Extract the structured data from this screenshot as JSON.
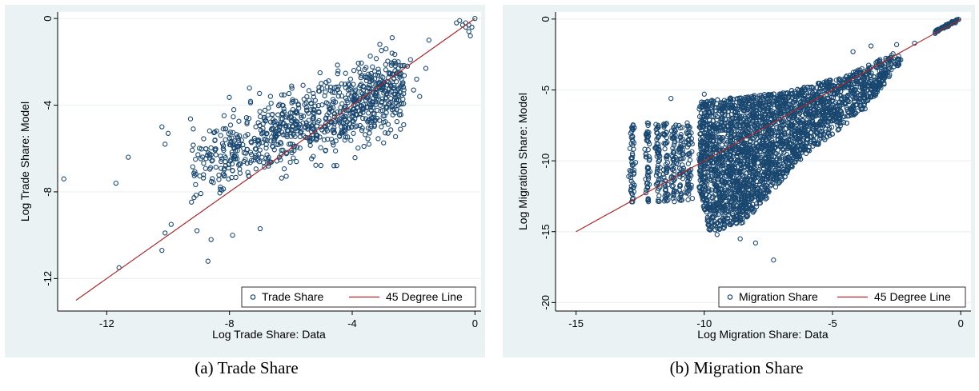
{
  "chart_data": [
    {
      "type": "scatter",
      "xlabel": "Log Trade Share: Data",
      "ylabel": "Log Trade Share: Model",
      "xlim": [
        -13.6,
        0.2
      ],
      "ylim": [
        -13.5,
        0.3
      ],
      "xticks": [
        "-12",
        "-8",
        "-4",
        "0"
      ],
      "xtick_values": [
        -12,
        -8,
        -4,
        0
      ],
      "yticks": [
        "0",
        "-4",
        "-8",
        "-12"
      ],
      "ytick_values": [
        0,
        -4,
        -8,
        -12
      ],
      "grid": true,
      "legend_position": "bottom-right",
      "series": [
        {
          "name": "Trade Share",
          "marker": "hollow-circle",
          "color": "#1a476f",
          "cluster_centers": [
            [
              -4.4,
              -4.5
            ],
            [
              -5.5,
              -5.2
            ],
            [
              -6.5,
              -6.3
            ],
            [
              -4.0,
              -4.3
            ],
            [
              -3.3,
              -3.8
            ],
            [
              -7.2,
              -6.8
            ]
          ],
          "points": [
            [
              -13.4,
              -7.4
            ],
            [
              -11.7,
              -7.6
            ],
            [
              -11.3,
              -6.4
            ],
            [
              -10.2,
              -5.0
            ],
            [
              -10.1,
              -5.8
            ],
            [
              -10.0,
              -5.3
            ],
            [
              -11.6,
              -11.5
            ],
            [
              -10.2,
              -10.7
            ],
            [
              -10.1,
              -9.9
            ],
            [
              -9.9,
              -9.5
            ],
            [
              -8.7,
              -11.2
            ],
            [
              -8.6,
              -10.2
            ],
            [
              -7.9,
              -10.0
            ],
            [
              -7.0,
              -9.7
            ],
            [
              -0.3,
              -0.2
            ],
            [
              -0.2,
              -0.3
            ],
            [
              -0.1,
              -0.4
            ],
            [
              -0.4,
              -0.3
            ],
            [
              -0.5,
              -0.1
            ],
            [
              -0.2,
              -0.6
            ],
            [
              -0.3,
              -0.4
            ],
            [
              0.0,
              0.0
            ],
            [
              -0.6,
              -0.2
            ],
            [
              -0.15,
              -0.8
            ],
            [
              -2.5,
              -2.0
            ],
            [
              -2.7,
              -1.6
            ],
            [
              -2.8,
              -2.5
            ],
            [
              -3.0,
              -2.9
            ],
            [
              -2.4,
              -2.8
            ],
            [
              -3.1,
              -3.2
            ],
            [
              -2.2,
              -2.2
            ],
            [
              -2.9,
              -1.4
            ],
            [
              -1.9,
              -2.8
            ],
            [
              -2.0,
              -3.3
            ],
            [
              -1.5,
              -1.0
            ],
            [
              -2.6,
              -3.5
            ],
            [
              -1.8,
              -3.6
            ],
            [
              -1.6,
              -2.3
            ],
            [
              -2.1,
              -1.9
            ]
          ]
        },
        {
          "name": "45 Degree Line",
          "from": [
            -13.0,
            -13.0
          ],
          "to": [
            0,
            0
          ],
          "color": "#a52a2a"
        }
      ]
    },
    {
      "type": "scatter",
      "xlabel": "Log Migration Share: Data",
      "ylabel": "Log Migration Share: Model",
      "xlim": [
        -15.8,
        0.4
      ],
      "ylim": [
        -20.6,
        0.5
      ],
      "xticks": [
        "-15",
        "-10",
        "-5",
        "0"
      ],
      "xtick_values": [
        -15,
        -10,
        -5,
        0
      ],
      "yticks": [
        "0",
        "-5",
        "-10",
        "-15",
        "-20"
      ],
      "ytick_values": [
        0,
        -5,
        -10,
        -15,
        -20
      ],
      "grid": true,
      "legend_position": "bottom-right",
      "series": [
        {
          "name": "Migration Share",
          "marker": "hollow-circle",
          "color": "#1a476f",
          "density_region": [
            [
              -10.2,
              -5.8
            ],
            [
              -7.0,
              -5.2
            ],
            [
              -4.5,
              -4.0
            ],
            [
              -2.5,
              -2.3
            ],
            [
              -2.3,
              -3.0
            ],
            [
              -3.8,
              -6.5
            ],
            [
              -6.0,
              -9.5
            ],
            [
              -7.5,
              -12.5
            ],
            [
              -8.5,
              -14.5
            ],
            [
              -9.8,
              -15.0
            ],
            [
              -10.2,
              -12.0
            ]
          ],
          "columns": [
            -12.8,
            -12.2,
            -11.8,
            -11.5,
            -11.2,
            -10.9,
            -10.6
          ],
          "column_range": [
            -12.9,
            -7.3
          ],
          "outliers": [
            [
              -7.3,
              -17.0
            ],
            [
              -8.0,
              -15.8
            ],
            [
              -9.5,
              -15.2
            ],
            [
              -8.6,
              -15.5
            ],
            [
              -10.0,
              -5.3
            ],
            [
              -11.3,
              -5.6
            ],
            [
              -4.2,
              -2.3
            ],
            [
              -3.5,
              -1.9
            ],
            [
              -2.5,
              -1.8
            ],
            [
              -1.8,
              -1.7
            ]
          ],
          "high_cluster": [
            [
              -1.0,
              -0.9
            ],
            [
              -0.05,
              0.0
            ]
          ]
        },
        {
          "name": "45 Degree Line",
          "from": [
            -15.0,
            -15.0
          ],
          "to": [
            0,
            0
          ],
          "color": "#a52a2a"
        }
      ]
    }
  ],
  "captions": [
    "(a)  Trade Share",
    "(b)  Migration Share"
  ],
  "colors": {
    "panel_bg": "#eaf2f3",
    "plot_bg": "#ffffff",
    "grid": "#eaf2f3",
    "marker": "#1a476f",
    "line": "#a52a2a"
  }
}
